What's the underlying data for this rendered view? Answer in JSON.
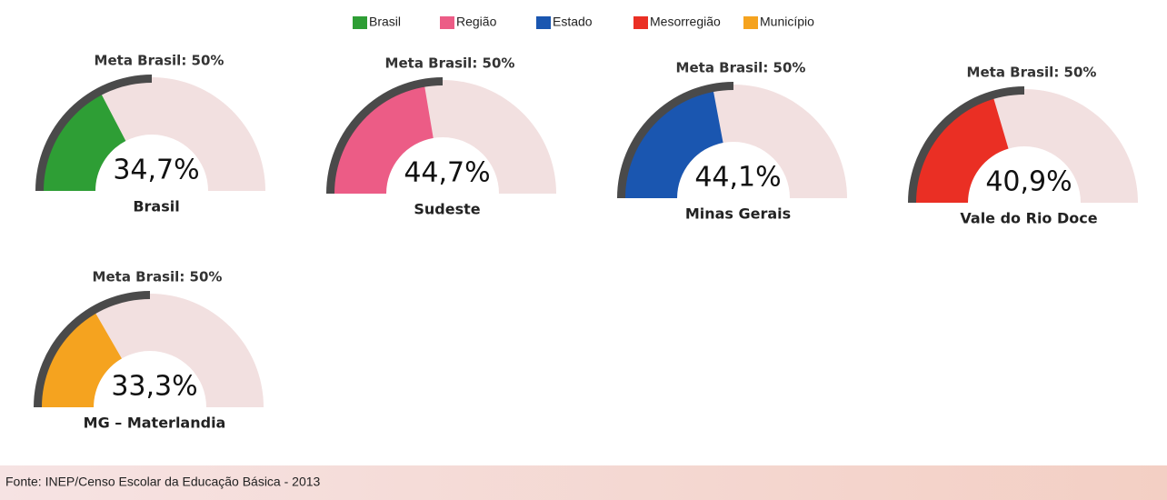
{
  "chart_data": {
    "type": "gauge",
    "ylim": [
      0,
      100
    ],
    "track_color": "#f2e0e0",
    "target_color": "#4a4a4a",
    "series": [
      {
        "name": "Brasil",
        "color": "#2e9e35",
        "label": "Brasil",
        "value": 34.7,
        "value_label": "34,7%",
        "target": 50,
        "target_label": "Meta Brasil: 50%"
      },
      {
        "name": "Região",
        "color": "#ec5c86",
        "label": "Sudeste",
        "value": 44.7,
        "value_label": "44,7%",
        "target": 50,
        "target_label": "Meta Brasil: 50%"
      },
      {
        "name": "Estado",
        "color": "#1a56b0",
        "label": "Minas Gerais",
        "value": 44.1,
        "value_label": "44,1%",
        "target": 50,
        "target_label": "Meta Brasil: 50%"
      },
      {
        "name": "Mesorregião",
        "color": "#ea2f24",
        "label": "Vale do Rio Doce",
        "value": 40.9,
        "value_label": "40,9%",
        "target": 50,
        "target_label": "Meta Brasil: 50%"
      },
      {
        "name": "Município",
        "color": "#f5a31f",
        "label": "MG – Materlandia",
        "value": 33.3,
        "value_label": "33,3%",
        "target": 50,
        "target_label": "Meta Brasil: 50%"
      }
    ],
    "source": "Fonte: INEP/Censo Escolar da Educação Básica - 2013"
  }
}
